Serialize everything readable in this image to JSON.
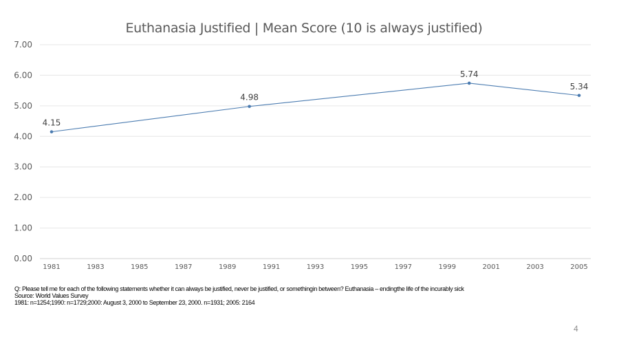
{
  "chart_data": {
    "type": "line",
    "title": "Euthanasia Justified  |  Mean Score (10 is always justified)",
    "x": [
      1981,
      1990,
      2000,
      2005
    ],
    "series": [
      {
        "values": [
          4.15,
          4.98,
          5.74,
          5.34
        ],
        "labels": [
          "4.15",
          "4.98",
          "5.74",
          "5.34"
        ]
      }
    ],
    "x_ticks": [
      "1981",
      "1983",
      "1985",
      "1987",
      "1989",
      "1991",
      "1993",
      "1995",
      "1997",
      "1999",
      "2001",
      "2003",
      "2005"
    ],
    "y_ticks": [
      "0.00",
      "1.00",
      "2.00",
      "3.00",
      "4.00",
      "5.00",
      "6.00",
      "7.00"
    ],
    "xlim": [
      1981,
      2005
    ],
    "ylim": [
      0,
      7
    ],
    "grid": true,
    "line_color": "#4a7bb0",
    "grid_color": "#e6e6e6"
  },
  "footnote": {
    "question": "Q: Please tell me for each of the following statements whether it can always be justified, never be justified, or somethingin between?  Euthanasia – endingthe life of the incurably sick",
    "source": "Source: World Values Survey",
    "samples": "1981: n=1254;1990: n=1729;2000: August 3, 2000 to September  23, 2000. n=1931; 2005: 2164"
  },
  "page_number": "4"
}
